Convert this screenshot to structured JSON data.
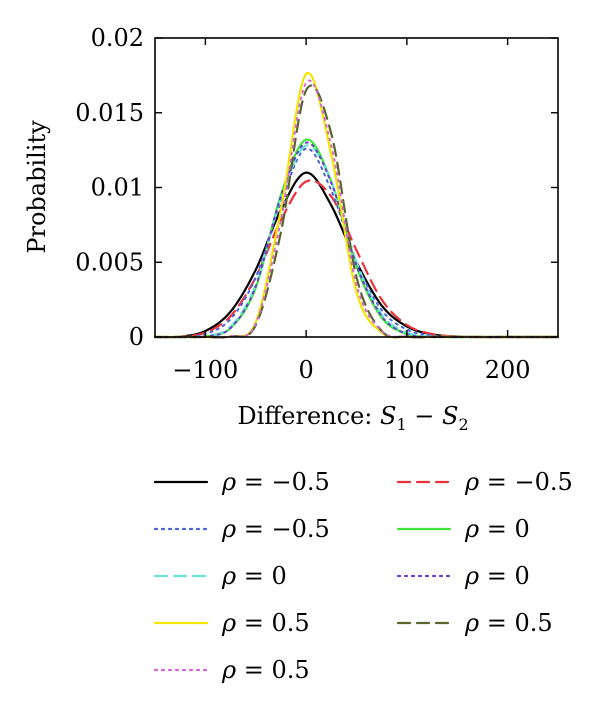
{
  "chart_data": {
    "type": "line",
    "title": "",
    "xlabel": {
      "prefix": "Difference: ",
      "s1": "S",
      "s1_sub": "1",
      "minus": " − ",
      "s2": "S",
      "s2_sub": "2"
    },
    "ylabel": "Probability",
    "xlim": [
      -150,
      250
    ],
    "ylim": [
      0,
      0.02
    ],
    "xticks": [
      -100,
      0,
      100,
      200
    ],
    "xtick_labels": [
      "−100",
      "0",
      "100",
      "200"
    ],
    "yticks": [
      0,
      0.005,
      0.01,
      0.015,
      0.02
    ],
    "ytick_labels": [
      "0",
      "0.005",
      "0.01",
      "0.015",
      "0.02"
    ],
    "grid": false,
    "legend_position": "below",
    "x": [
      -150,
      -125,
      -100,
      -75,
      -50,
      -25,
      0,
      25,
      50,
      75,
      100,
      125,
      150,
      175,
      200,
      225,
      250
    ],
    "series": [
      {
        "name": "ρ = −0.5",
        "color": "#000000",
        "style": "solid",
        "values": [
          0,
          2e-05,
          0.0004,
          0.0017,
          0.0045,
          0.0085,
          0.011,
          0.0088,
          0.005,
          0.0021,
          0.0007,
          0.00018,
          3e-05,
          0,
          0,
          0,
          0
        ]
      },
      {
        "name": "ρ = −0.5",
        "color": "#e8333a",
        "style": "dashed",
        "values": [
          0,
          2e-05,
          0.0003,
          0.0014,
          0.004,
          0.0078,
          0.0104,
          0.0094,
          0.0058,
          0.0025,
          0.0008,
          0.0002,
          3e-05,
          0,
          0,
          0,
          0
        ]
      },
      {
        "name": "ρ = −0.5",
        "color": "#4a63d8",
        "style": "dotted",
        "values": [
          0,
          1e-05,
          0.0002,
          0.0012,
          0.004,
          0.009,
          0.0126,
          0.0098,
          0.005,
          0.0018,
          0.0005,
          0.0001,
          0,
          0,
          0,
          0,
          0
        ]
      },
      {
        "name": "ρ = 0",
        "color": "#3ee63a",
        "style": "solid",
        "values": [
          0,
          0,
          5e-05,
          0.0006,
          0.0033,
          0.0095,
          0.0132,
          0.0104,
          0.0047,
          0.0013,
          0.0002,
          2e-05,
          0,
          0,
          0,
          0,
          0
        ]
      },
      {
        "name": "ρ = 0",
        "color": "#6fe2d8",
        "style": "dashed",
        "values": [
          0,
          0,
          6e-05,
          0.0007,
          0.0035,
          0.0093,
          0.0128,
          0.0104,
          0.005,
          0.0015,
          0.0003,
          3e-05,
          0,
          0,
          0,
          0,
          0
        ]
      },
      {
        "name": "ρ = 0",
        "color": "#6a3ec8",
        "style": "dotted",
        "values": [
          0,
          0,
          5e-05,
          0.0006,
          0.0034,
          0.0094,
          0.013,
          0.0103,
          0.0048,
          0.0014,
          0.0002,
          2e-05,
          0,
          0,
          0,
          0,
          0
        ]
      },
      {
        "name": "ρ = 0.5",
        "color": "#f2e600",
        "style": "solid",
        "values": [
          0,
          0,
          0,
          5e-05,
          0.001,
          0.0085,
          0.0176,
          0.0122,
          0.003,
          0.0003,
          1e-05,
          0,
          0,
          0,
          0,
          0,
          0
        ]
      },
      {
        "name": "ρ = 0.5",
        "color": "#5a6630",
        "style": "dashed",
        "values": [
          0,
          0,
          0,
          4e-05,
          0.0008,
          0.007,
          0.0165,
          0.0136,
          0.004,
          0.0004,
          2e-05,
          0,
          0,
          0,
          0,
          0,
          0
        ]
      },
      {
        "name": "ρ = 0.5",
        "color": "#d26ad6",
        "style": "dotted",
        "values": [
          0,
          0,
          0,
          5e-05,
          0.0009,
          0.0078,
          0.017,
          0.0128,
          0.0035,
          0.0004,
          2e-05,
          0,
          0,
          0,
          0,
          0,
          0
        ]
      }
    ]
  },
  "legend": {
    "left": [
      {
        "rho": "ρ",
        "eq": " = −0.5",
        "color": "#000000",
        "style": "solid"
      },
      {
        "rho": "ρ",
        "eq": " = −0.5",
        "color": "#4a63d8",
        "style": "dotted"
      },
      {
        "rho": "ρ",
        "eq": " = 0",
        "color": "#6fe2d8",
        "style": "dashed"
      },
      {
        "rho": "ρ",
        "eq": " = 0.5",
        "color": "#f2e600",
        "style": "solid"
      },
      {
        "rho": "ρ",
        "eq": " = 0.5",
        "color": "#d26ad6",
        "style": "dotted"
      }
    ],
    "right": [
      {
        "rho": "ρ",
        "eq": " = −0.5",
        "color": "#e8333a",
        "style": "dashed"
      },
      {
        "rho": "ρ",
        "eq": " = 0",
        "color": "#3ee63a",
        "style": "solid"
      },
      {
        "rho": "ρ",
        "eq": " = 0",
        "color": "#6a3ec8",
        "style": "dotted"
      },
      {
        "rho": "ρ",
        "eq": " = 0.5",
        "color": "#5a6630",
        "style": "dashed"
      }
    ]
  }
}
